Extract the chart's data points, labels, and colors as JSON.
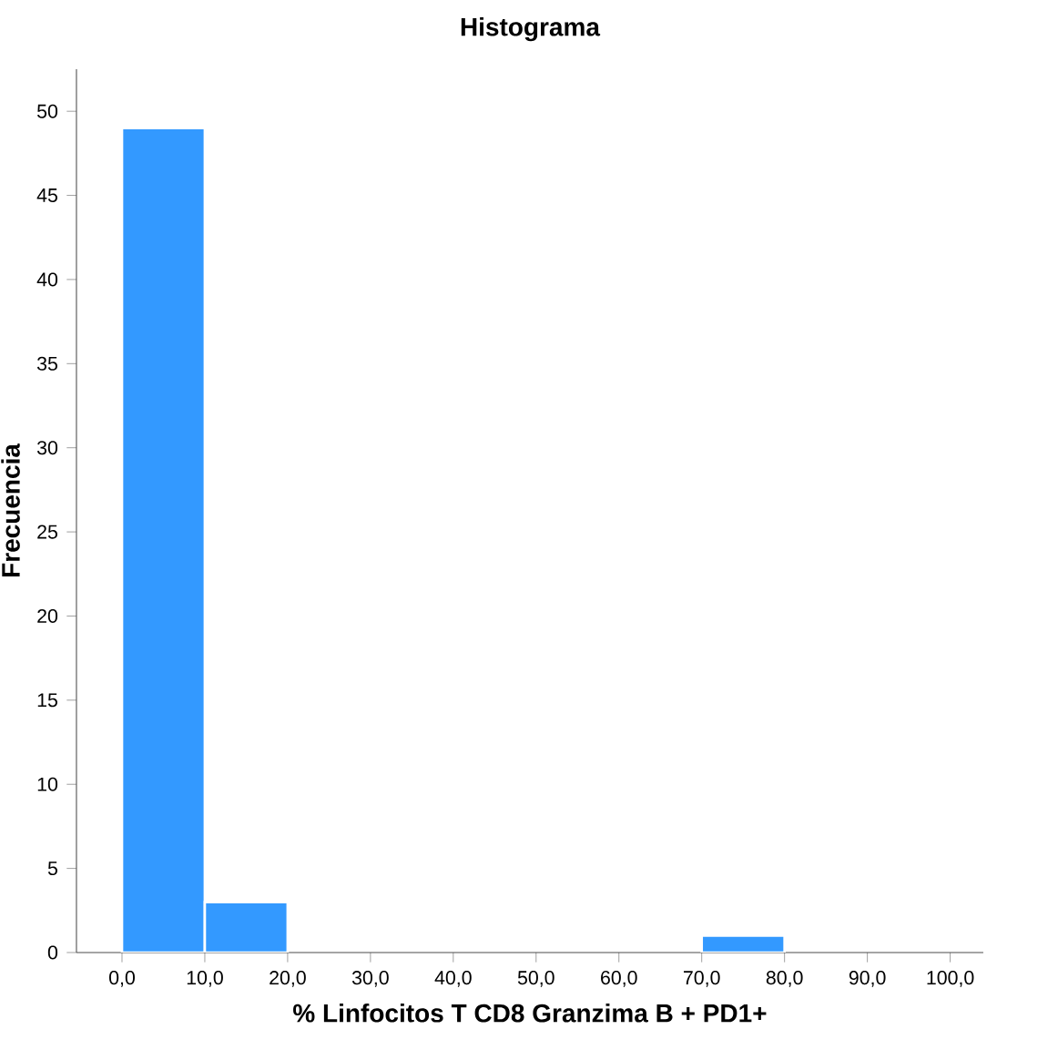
{
  "chart_data": {
    "type": "histogram",
    "title": "Histograma",
    "xlabel": "% Linfocitos T CD8 Granzima B + PD1+",
    "ylabel": "Frecuencia",
    "bins": [
      0,
      10,
      20,
      30,
      40,
      50,
      60,
      70,
      80,
      90,
      100
    ],
    "values": [
      49,
      3,
      0,
      0,
      0,
      0,
      0,
      1,
      0,
      0
    ],
    "color": "#3399ff",
    "xlim": [
      -5.5,
      104
    ],
    "ylim": [
      0,
      52.5
    ],
    "xticks": [
      {
        "value": 0,
        "label": "0,0"
      },
      {
        "value": 10,
        "label": "10,0"
      },
      {
        "value": 20,
        "label": "20,0"
      },
      {
        "value": 30,
        "label": "30,0"
      },
      {
        "value": 40,
        "label": "40,0"
      },
      {
        "value": 50,
        "label": "50,0"
      },
      {
        "value": 60,
        "label": "60,0"
      },
      {
        "value": 70,
        "label": "70,0"
      },
      {
        "value": 80,
        "label": "80,0"
      },
      {
        "value": 90,
        "label": "90,0"
      },
      {
        "value": 100,
        "label": "100,0"
      }
    ],
    "yticks": [
      0,
      5,
      10,
      15,
      20,
      25,
      30,
      35,
      40,
      45,
      50
    ],
    "grid": false
  }
}
